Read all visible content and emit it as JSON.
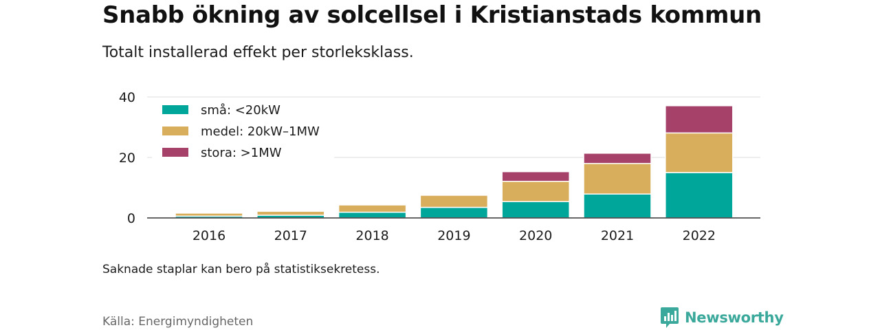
{
  "title": "Snabb ökning av solcellsel i Kristianstads kommun",
  "subtitle": "Totalt installerad effekt per storleksklass.",
  "note": "Saknade staplar kan bero på statistiksekretess.",
  "source": "Källa: Energimyndigheten",
  "brand": "Newsworthy",
  "colors": {
    "small": "#00a69a",
    "medium": "#d8ad5b",
    "large": "#a6426a",
    "brand": "#3aa89a"
  },
  "chart_data": {
    "type": "bar",
    "stacked": true,
    "categories": [
      "2016",
      "2017",
      "2018",
      "2019",
      "2020",
      "2021",
      "2022"
    ],
    "series": [
      {
        "name": "små: <20kW",
        "color": "#00a69a",
        "values": [
          0.6,
          0.9,
          1.9,
          3.5,
          5.4,
          7.9,
          15.0
        ]
      },
      {
        "name": "medel: 20kW–1MW",
        "color": "#d8ad5b",
        "values": [
          1.0,
          1.3,
          2.4,
          4.0,
          6.7,
          10.1,
          13.1
        ]
      },
      {
        "name": "stora: >1MW",
        "color": "#a6426a",
        "values": [
          0,
          0,
          0,
          0,
          3.2,
          3.4,
          9.0
        ]
      }
    ],
    "yticks": [
      0,
      20,
      40
    ],
    "ylim": [
      0,
      40
    ],
    "grid": true,
    "legend_position": "top-left"
  }
}
